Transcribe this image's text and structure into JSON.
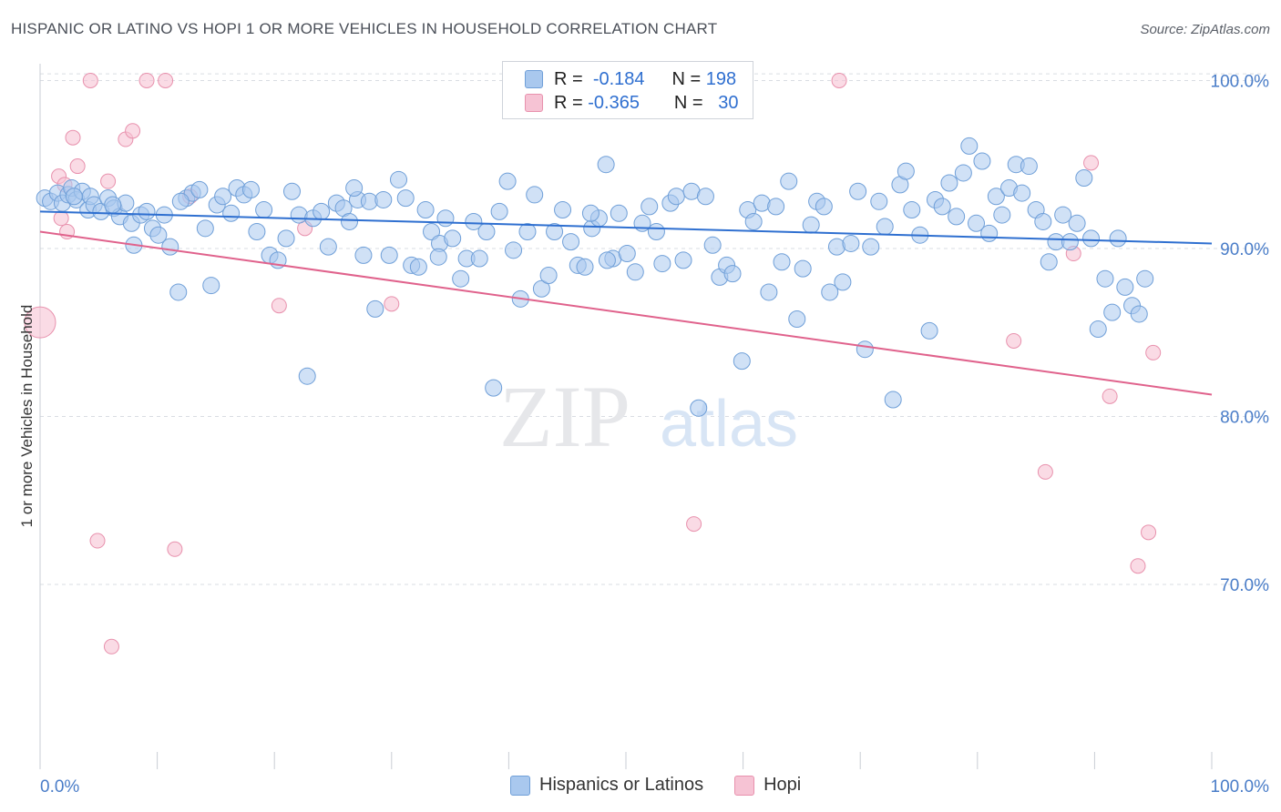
{
  "header": {
    "title": "HISPANIC OR LATINO VS HOPI 1 OR MORE VEHICLES IN HOUSEHOLD CORRELATION CHART",
    "source": "Source: ZipAtlas.com"
  },
  "legend": {
    "series1": {
      "r_label": "R =",
      "r_value": "-0.184",
      "n_label": "N =",
      "n_value": "198"
    },
    "series2": {
      "r_label": "R =",
      "r_value": "-0.365",
      "n_label": "N =",
      "n_value": "30"
    }
  },
  "bottom_legend": {
    "series1": "Hispanics or Latinos",
    "series2": "Hopi"
  },
  "watermark": {
    "zip": "ZIP",
    "atlas": "atlas"
  },
  "colors": {
    "blue_fill": "#a9c8ee",
    "blue_stroke": "#6f9fd8",
    "blue_line": "#2e6fd0",
    "pink_fill": "#f6c3d4",
    "pink_stroke": "#e891ad",
    "pink_line": "#e0628c",
    "tick_label": "#4a7dc8",
    "grid": "#d9dde3"
  },
  "chart_data": {
    "type": "scatter",
    "title": "HISPANIC OR LATINO VS HOPI 1 OR MORE VEHICLES IN HOUSEHOLD CORRELATION CHART",
    "xlabel": "",
    "ylabel": "1 or more Vehicles in Household",
    "xlim": [
      0,
      100
    ],
    "ylim": [
      59,
      101
    ],
    "x_tick_labels": [
      "0.0%",
      "100.0%"
    ],
    "y_ticks": [
      70,
      80,
      90,
      100
    ],
    "y_tick_labels": [
      "70.0%",
      "80.0%",
      "90.0%",
      "100.0%"
    ],
    "grid": true,
    "legend_position": "top-center",
    "series": [
      {
        "name": "Hispanics or Latinos",
        "r": -0.184,
        "n": 198,
        "trend": {
          "x": [
            0,
            100
          ],
          "y": [
            92.2,
            90.3
          ]
        },
        "points": [
          [
            0.4,
            93.0
          ],
          [
            0.9,
            92.8
          ],
          [
            1.5,
            93.3
          ],
          [
            1.9,
            92.7
          ],
          [
            2.4,
            93.2
          ],
          [
            2.7,
            93.6
          ],
          [
            3.1,
            92.9
          ],
          [
            3.6,
            93.4
          ],
          [
            4.1,
            92.3
          ],
          [
            4.3,
            93.1
          ],
          [
            4.6,
            92.6
          ],
          [
            5.2,
            92.2
          ],
          [
            5.8,
            93.0
          ],
          [
            6.3,
            92.4
          ],
          [
            6.8,
            91.9
          ],
          [
            7.3,
            92.7
          ],
          [
            7.8,
            91.5
          ],
          [
            8.0,
            90.2
          ],
          [
            8.6,
            92.0
          ],
          [
            9.1,
            92.2
          ],
          [
            9.6,
            91.2
          ],
          [
            10.1,
            90.8
          ],
          [
            10.6,
            92.0
          ],
          [
            11.1,
            90.1
          ],
          [
            11.8,
            87.4
          ],
          [
            12.5,
            93.0
          ],
          [
            13.0,
            93.3
          ],
          [
            13.6,
            93.5
          ],
          [
            14.1,
            91.2
          ],
          [
            14.6,
            87.8
          ],
          [
            15.1,
            92.6
          ],
          [
            15.6,
            93.1
          ],
          [
            16.3,
            92.1
          ],
          [
            16.8,
            93.6
          ],
          [
            17.4,
            93.2
          ],
          [
            18.0,
            93.5
          ],
          [
            18.5,
            91.0
          ],
          [
            19.1,
            92.3
          ],
          [
            19.6,
            89.6
          ],
          [
            20.3,
            89.3
          ],
          [
            21.0,
            90.6
          ],
          [
            21.5,
            93.4
          ],
          [
            22.1,
            92.0
          ],
          [
            22.8,
            82.4
          ],
          [
            23.3,
            91.8
          ],
          [
            24.0,
            92.2
          ],
          [
            24.6,
            90.1
          ],
          [
            25.3,
            92.7
          ],
          [
            25.9,
            92.4
          ],
          [
            26.4,
            91.6
          ],
          [
            27.1,
            92.9
          ],
          [
            27.6,
            89.6
          ],
          [
            28.1,
            92.8
          ],
          [
            28.6,
            86.4
          ],
          [
            29.3,
            92.9
          ],
          [
            29.8,
            89.6
          ],
          [
            30.6,
            94.1
          ],
          [
            31.2,
            93.0
          ],
          [
            31.7,
            89.0
          ],
          [
            32.3,
            88.9
          ],
          [
            32.9,
            92.3
          ],
          [
            33.4,
            91.0
          ],
          [
            34.1,
            90.3
          ],
          [
            34.6,
            91.8
          ],
          [
            35.2,
            90.6
          ],
          [
            35.9,
            88.2
          ],
          [
            36.4,
            89.4
          ],
          [
            37.0,
            91.6
          ],
          [
            37.5,
            89.4
          ],
          [
            38.1,
            91.0
          ],
          [
            38.7,
            81.7
          ],
          [
            39.2,
            92.2
          ],
          [
            39.9,
            94.0
          ],
          [
            40.4,
            89.9
          ],
          [
            41.0,
            87.0
          ],
          [
            41.6,
            91.0
          ],
          [
            42.2,
            93.2
          ],
          [
            42.8,
            87.6
          ],
          [
            43.4,
            88.4
          ],
          [
            43.9,
            91.0
          ],
          [
            44.6,
            92.3
          ],
          [
            45.3,
            90.4
          ],
          [
            45.9,
            89.0
          ],
          [
            46.5,
            88.9
          ],
          [
            47.1,
            91.2
          ],
          [
            47.7,
            91.8
          ],
          [
            48.3,
            95.0
          ],
          [
            48.9,
            89.4
          ],
          [
            49.4,
            92.1
          ],
          [
            50.1,
            89.7
          ],
          [
            50.8,
            88.6
          ],
          [
            51.4,
            91.5
          ],
          [
            52.0,
            92.5
          ],
          [
            52.6,
            91.0
          ],
          [
            53.1,
            89.1
          ],
          [
            53.8,
            92.7
          ],
          [
            54.3,
            93.1
          ],
          [
            54.9,
            89.3
          ],
          [
            55.6,
            93.4
          ],
          [
            56.2,
            80.5
          ],
          [
            56.8,
            93.1
          ],
          [
            57.4,
            90.2
          ],
          [
            58.0,
            88.3
          ],
          [
            58.6,
            89.0
          ],
          [
            59.1,
            88.5
          ],
          [
            59.9,
            83.3
          ],
          [
            60.4,
            92.3
          ],
          [
            60.9,
            91.6
          ],
          [
            61.6,
            92.7
          ],
          [
            62.2,
            87.4
          ],
          [
            62.8,
            92.5
          ],
          [
            63.3,
            89.2
          ],
          [
            63.9,
            94.0
          ],
          [
            64.6,
            85.8
          ],
          [
            65.1,
            88.8
          ],
          [
            65.8,
            91.4
          ],
          [
            66.3,
            92.8
          ],
          [
            66.9,
            92.5
          ],
          [
            67.4,
            87.4
          ],
          [
            68.0,
            90.1
          ],
          [
            68.5,
            88.0
          ],
          [
            69.2,
            90.3
          ],
          [
            69.8,
            93.4
          ],
          [
            70.4,
            84.0
          ],
          [
            70.9,
            90.1
          ],
          [
            71.6,
            92.8
          ],
          [
            72.1,
            91.3
          ],
          [
            72.8,
            81.0
          ],
          [
            73.4,
            93.8
          ],
          [
            73.9,
            94.6
          ],
          [
            74.4,
            92.3
          ],
          [
            75.1,
            90.8
          ],
          [
            75.9,
            85.1
          ],
          [
            76.4,
            92.9
          ],
          [
            77.0,
            92.5
          ],
          [
            77.6,
            93.9
          ],
          [
            78.2,
            91.9
          ],
          [
            78.8,
            94.5
          ],
          [
            79.3,
            96.1
          ],
          [
            79.9,
            91.5
          ],
          [
            80.4,
            95.2
          ],
          [
            81.0,
            90.9
          ],
          [
            81.6,
            93.1
          ],
          [
            82.1,
            92.0
          ],
          [
            82.7,
            93.6
          ],
          [
            83.3,
            95.0
          ],
          [
            83.8,
            93.3
          ],
          [
            84.4,
            94.9
          ],
          [
            85.0,
            92.3
          ],
          [
            85.6,
            91.6
          ],
          [
            86.1,
            89.2
          ],
          [
            86.7,
            90.4
          ],
          [
            87.3,
            92.0
          ],
          [
            87.9,
            90.4
          ],
          [
            88.5,
            91.5
          ],
          [
            89.1,
            94.2
          ],
          [
            89.7,
            90.6
          ],
          [
            90.3,
            85.2
          ],
          [
            90.9,
            88.2
          ],
          [
            91.5,
            86.2
          ],
          [
            92.0,
            90.6
          ],
          [
            92.6,
            87.7
          ],
          [
            93.2,
            86.6
          ],
          [
            93.8,
            86.1
          ],
          [
            94.3,
            88.2
          ],
          [
            6.2,
            92.6
          ],
          [
            2.9,
            93.1
          ],
          [
            12.0,
            92.8
          ],
          [
            26.8,
            93.6
          ],
          [
            47.0,
            92.1
          ],
          [
            34.0,
            89.5
          ],
          [
            48.4,
            89.3
          ]
        ]
      },
      {
        "name": "Hopi",
        "r": -0.365,
        "n": 30,
        "trend": {
          "x": [
            0,
            100
          ],
          "y": [
            91.0,
            81.3
          ]
        },
        "points": [
          [
            0.0,
            85.6
          ],
          [
            1.6,
            94.3
          ],
          [
            1.8,
            91.8
          ],
          [
            2.1,
            93.8
          ],
          [
            2.3,
            91.0
          ],
          [
            2.8,
            96.6
          ],
          [
            3.2,
            94.9
          ],
          [
            4.3,
            100.0
          ],
          [
            4.9,
            72.6
          ],
          [
            5.8,
            94.0
          ],
          [
            6.1,
            66.3
          ],
          [
            7.3,
            96.5
          ],
          [
            7.9,
            97.0
          ],
          [
            9.1,
            100.0
          ],
          [
            10.7,
            100.0
          ],
          [
            11.5,
            72.1
          ],
          [
            12.8,
            93.1
          ],
          [
            20.4,
            86.6
          ],
          [
            22.6,
            91.2
          ],
          [
            30.0,
            86.7
          ],
          [
            55.8,
            73.6
          ],
          [
            68.2,
            100.0
          ],
          [
            83.1,
            84.5
          ],
          [
            85.8,
            76.7
          ],
          [
            88.2,
            89.7
          ],
          [
            89.7,
            95.1
          ],
          [
            91.3,
            81.2
          ],
          [
            93.7,
            71.1
          ],
          [
            94.6,
            73.1
          ],
          [
            95.0,
            83.8
          ]
        ]
      }
    ]
  }
}
